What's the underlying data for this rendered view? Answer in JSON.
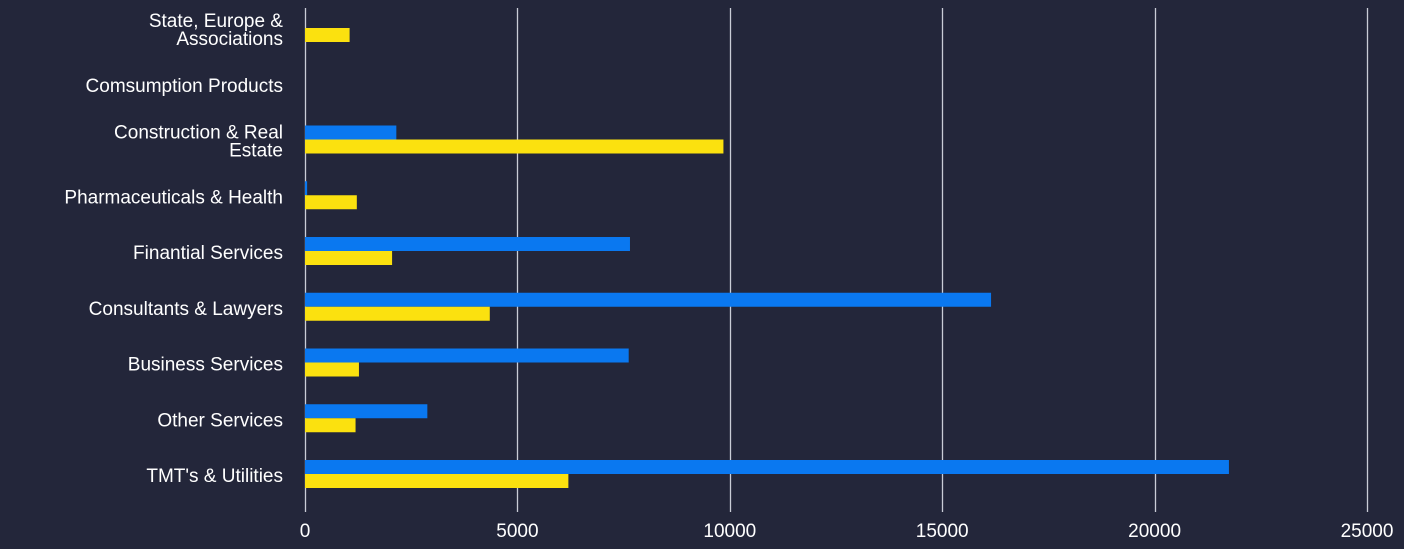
{
  "colors": {
    "background": "#23263a",
    "grid": "#c9ccd6",
    "series_blue": "#0a78f0",
    "series_yellow": "#fbe10f",
    "text": "#ffffff"
  },
  "chart_data": {
    "type": "bar",
    "orientation": "horizontal",
    "title": "",
    "xlabel": "",
    "ylabel": "",
    "xlim": [
      0,
      25000
    ],
    "x_ticks": [
      0,
      5000,
      10000,
      15000,
      20000,
      25000
    ],
    "x_tick_labels": [
      "0",
      "5000",
      "10000",
      "15000",
      "20000",
      "25000"
    ],
    "grid": "vertical",
    "legend": "none",
    "categories": [
      [
        "State, Europe &",
        "Associations"
      ],
      [
        "Comsumption Products"
      ],
      [
        "Construction & Real",
        "Estate"
      ],
      [
        "Pharmaceuticals & Health"
      ],
      [
        "Finantial Services"
      ],
      [
        "Consultants & Lawyers"
      ],
      [
        "Business Services"
      ],
      [
        "Other Services"
      ],
      [
        "TMT's & Utilities"
      ]
    ],
    "series": [
      {
        "color": "#0a78f0",
        "values": [
          0,
          0,
          2150,
          50,
          7650,
          16150,
          7620,
          2880,
          21750
        ]
      },
      {
        "color": "#fbe10f",
        "values": [
          1050,
          0,
          9850,
          1220,
          2050,
          4350,
          1270,
          1190,
          6200
        ]
      }
    ]
  }
}
